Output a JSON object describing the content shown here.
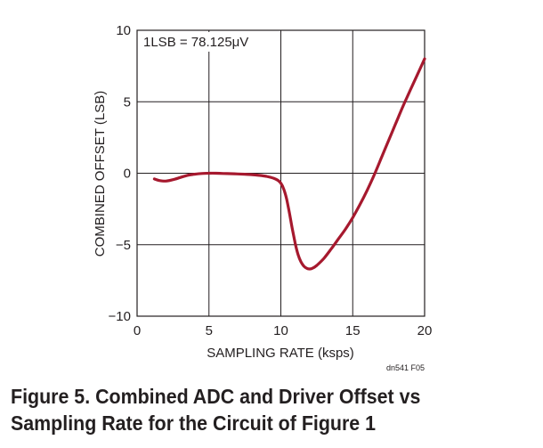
{
  "chart_data": {
    "type": "line",
    "title": "",
    "xlabel": "SAMPLING RATE (ksps)",
    "ylabel": "COMBINED OFFSET (LSB)",
    "xlim": [
      0,
      20
    ],
    "ylim": [
      -10,
      10
    ],
    "x_ticks": [
      0,
      5,
      10,
      15,
      20
    ],
    "y_ticks": [
      -10,
      -5,
      0,
      5,
      10
    ],
    "x_tick_labels": [
      "0",
      "5",
      "10",
      "15",
      "20"
    ],
    "y_tick_labels": [
      "−10",
      "−5",
      "0",
      "5",
      "10"
    ],
    "grid": true,
    "annotation": "1LSB = 78.125μV",
    "figure_id": "dn541 F05",
    "series": [
      {
        "color": "#a6192e",
        "x": [
          1.2,
          1.5,
          2.0,
          2.5,
          3.0,
          3.5,
          4.0,
          4.5,
          5.0,
          5.5,
          6.0,
          6.5,
          7.0,
          7.5,
          8.0,
          8.5,
          9.0,
          9.5,
          9.8,
          10.0,
          10.2,
          10.4,
          10.6,
          10.8,
          11.0,
          11.2,
          11.4,
          11.6,
          11.8,
          12.0,
          12.2,
          12.5,
          13.0,
          13.5,
          14.0,
          14.5,
          15.0,
          15.5,
          16.0,
          16.5,
          17.0,
          17.5,
          18.0,
          18.5,
          19.0,
          19.5,
          20.0
        ],
        "y": [
          -0.4,
          -0.5,
          -0.55,
          -0.45,
          -0.3,
          -0.15,
          -0.07,
          -0.02,
          0.0,
          0.0,
          -0.02,
          -0.03,
          -0.05,
          -0.07,
          -0.1,
          -0.15,
          -0.22,
          -0.35,
          -0.5,
          -0.7,
          -1.1,
          -1.8,
          -2.8,
          -3.9,
          -4.9,
          -5.7,
          -6.2,
          -6.5,
          -6.65,
          -6.7,
          -6.65,
          -6.45,
          -5.95,
          -5.3,
          -4.6,
          -3.9,
          -3.1,
          -2.2,
          -1.2,
          -0.1,
          1.1,
          2.3,
          3.5,
          4.7,
          5.8,
          6.9,
          8.0
        ]
      }
    ]
  },
  "caption": "Figure 5. Combined ADC and Driver Offset vs Sampling Rate for the Circuit of Figure 1"
}
